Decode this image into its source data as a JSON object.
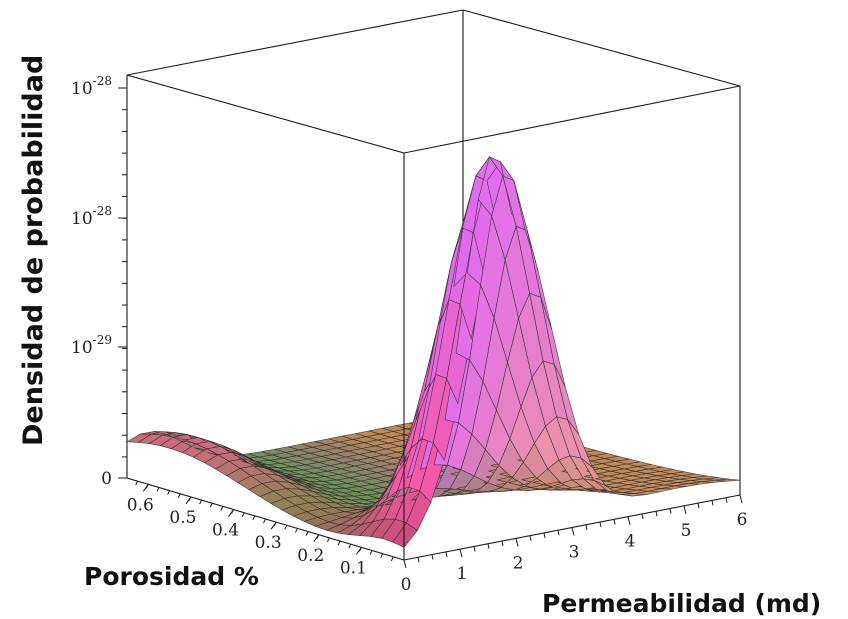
{
  "chart_data": {
    "type": "surface3d",
    "zlabel": "Densidad de probabilidad",
    "xlabel": "Permeabilidad (md)",
    "ylabel": "Porosidad %",
    "x_range": [
      0,
      6
    ],
    "y_range": [
      0,
      0.65
    ],
    "x_ticks": [
      "0",
      "1",
      "2",
      "3",
      "4",
      "5",
      "6"
    ],
    "y_ticks": [
      "0.1",
      "0.2",
      "0.3",
      "0.4",
      "0.5",
      "0.6"
    ],
    "z_ticks": [
      {
        "base": "10",
        "exp": "-28"
      },
      {
        "base": "10",
        "exp": "-28"
      },
      {
        "base": "10",
        "exp": "-29"
      },
      {
        "base": "",
        "exp": "",
        "text": "0"
      }
    ],
    "surface": {
      "peak_x": 1.9,
      "peak_y": 0.04,
      "grid_x_lines": 25,
      "grid_y_lines": 25,
      "colors": [
        "#ff4d7a",
        "#e06cf0",
        "#f5b070",
        "#6fd83f"
      ]
    }
  }
}
